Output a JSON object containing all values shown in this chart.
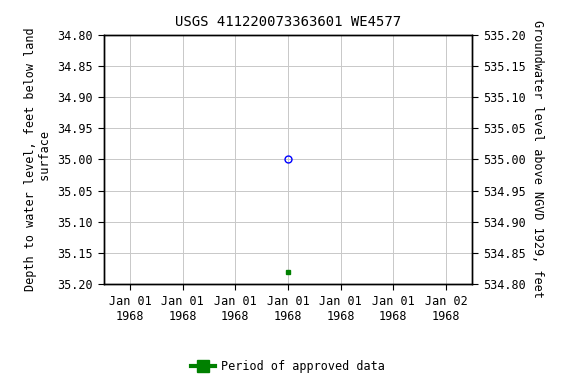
{
  "title": "USGS 411220073363601 WE4577",
  "ylabel_left": "Depth to water level, feet below land\n surface",
  "ylabel_right": "Groundwater level above NGVD 1929, feet",
  "ylim_left": [
    35.2,
    34.8
  ],
  "ylim_right": [
    534.8,
    535.2
  ],
  "yticks_left": [
    34.8,
    34.85,
    34.9,
    34.95,
    35.0,
    35.05,
    35.1,
    35.15,
    35.2
  ],
  "yticks_right": [
    534.8,
    534.85,
    534.9,
    534.95,
    535.0,
    535.05,
    535.1,
    535.15,
    535.2
  ],
  "xtick_labels": [
    "Jan 01\n1968",
    "Jan 01\n1968",
    "Jan 01\n1968",
    "Jan 01\n1968",
    "Jan 01\n1968",
    "Jan 01\n1968",
    "Jan 02\n1968"
  ],
  "xtick_positions": [
    0,
    1,
    2,
    3,
    4,
    5,
    6
  ],
  "xlim": [
    -0.5,
    6.5
  ],
  "point_blue_x": 3.0,
  "point_blue_y": 35.0,
  "point_green_x": 3.0,
  "point_green_y": 35.18,
  "background_color": "#ffffff",
  "grid_color": "#c8c8c8",
  "legend_label": "Period of approved data",
  "legend_color": "#008000",
  "title_fontsize": 10,
  "label_fontsize": 8.5,
  "tick_fontsize": 8.5
}
